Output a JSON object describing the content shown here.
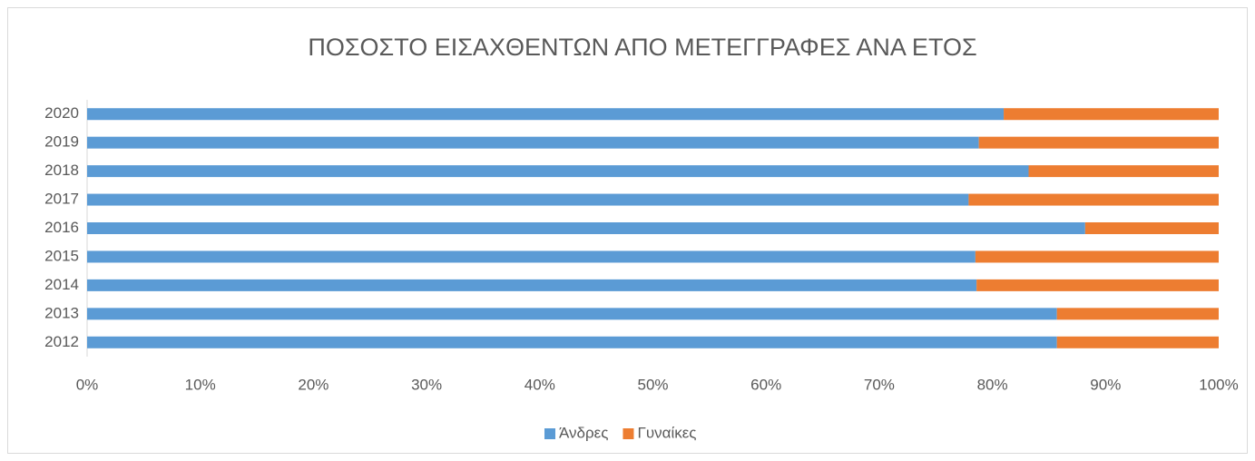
{
  "chart_data": {
    "type": "stacked_barh",
    "title": "ΠΟΣΟΣΤΟ ΕΙΣΑΧΘΕΝΤΩΝ ΑΠΟ ΜΕΤΕΓΓΡΑΦΕΣ ΑΝΑ ΕΤΟΣ",
    "categories": [
      "2012",
      "2013",
      "2014",
      "2015",
      "2016",
      "2017",
      "2018",
      "2019",
      "2020"
    ],
    "series": [
      {
        "name": "Άνδρες",
        "color": "#5b9bd5",
        "values": [
          85.7,
          85.7,
          78.6,
          78.5,
          88.2,
          77.9,
          83.2,
          78.8,
          81.0
        ]
      },
      {
        "name": "Γυναίκες",
        "color": "#ed7d31",
        "values": [
          14.3,
          14.3,
          21.4,
          21.5,
          11.8,
          22.1,
          16.8,
          21.2,
          19.0
        ]
      }
    ],
    "xlim": [
      0,
      100
    ],
    "xticks": [
      {
        "value": 0,
        "label": "0%"
      },
      {
        "value": 10,
        "label": "10%"
      },
      {
        "value": 20,
        "label": "20%"
      },
      {
        "value": 30,
        "label": "30%"
      },
      {
        "value": 40,
        "label": "40%"
      },
      {
        "value": 50,
        "label": "50%"
      },
      {
        "value": 60,
        "label": "60%"
      },
      {
        "value": 70,
        "label": "70%"
      },
      {
        "value": 80,
        "label": "80%"
      },
      {
        "value": 90,
        "label": "90%"
      },
      {
        "value": 100,
        "label": "100%"
      }
    ],
    "grid": false,
    "legend": "bottom"
  }
}
